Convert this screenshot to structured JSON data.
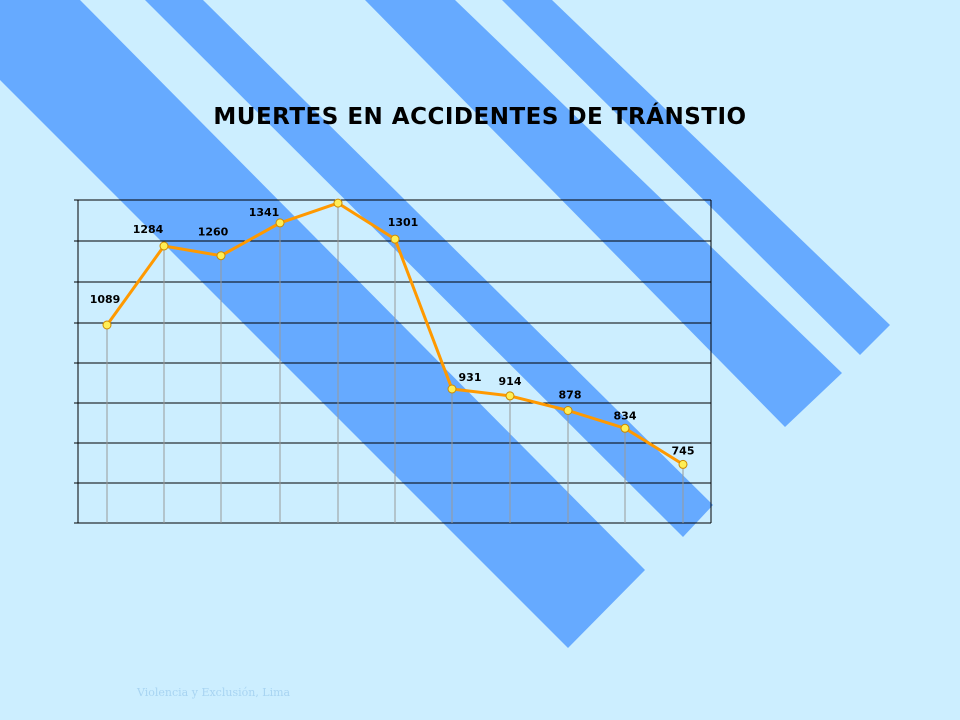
{
  "title": "MUERTES EN ACCIDENTES DE TRÁNSTIO",
  "footer": "Violencia y Exclusión, Lima",
  "colors": {
    "background": "#cceeff",
    "stripe": "#66aaff",
    "line": "#ff9900",
    "marker": "#ffee55"
  },
  "chart_data": {
    "type": "line",
    "title": "MUERTES EN ACCIDENTES DE TRÁNSTIO",
    "xlabel": "",
    "ylabel": "",
    "ylim": [
      0,
      1400
    ],
    "grid": true,
    "series": [
      {
        "values": [
          1089,
          1284,
          1260,
          1341,
          1390,
          1301,
          931,
          914,
          878,
          834,
          745
        ],
        "labels": [
          "1089",
          "1284",
          "1260",
          "1341",
          "",
          "1301",
          "931",
          "914",
          "878",
          "834",
          "745"
        ]
      }
    ]
  }
}
